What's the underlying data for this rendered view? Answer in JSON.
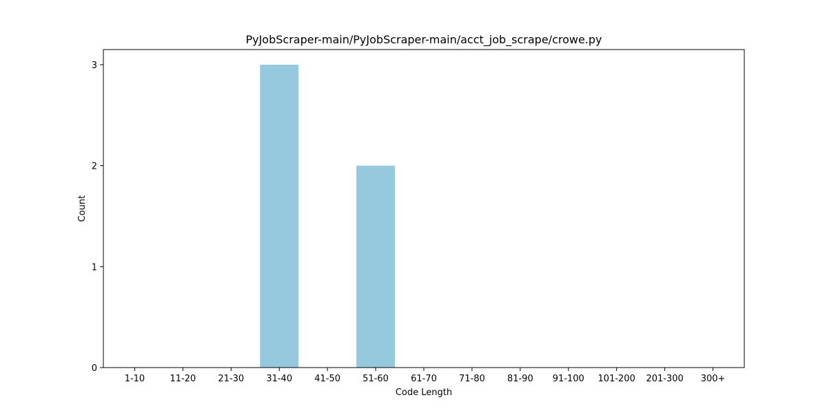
{
  "chart_data": {
    "type": "bar",
    "title": "PyJobScraper-main/PyJobScraper-main/acct_job_scrape/crowe.py",
    "xlabel": "Code Length",
    "ylabel": "Count",
    "categories": [
      "1-10",
      "11-20",
      "21-30",
      "31-40",
      "41-50",
      "51-60",
      "61-70",
      "71-80",
      "81-90",
      "91-100",
      "101-200",
      "201-300",
      "300+"
    ],
    "values": [
      0,
      0,
      0,
      3,
      0,
      2,
      0,
      0,
      0,
      0,
      0,
      0,
      0
    ],
    "ylim": [
      0,
      3.15
    ],
    "yticks": [
      0,
      1,
      2,
      3
    ],
    "bar_color": "#96c9de",
    "grid": false,
    "legend": "none"
  }
}
